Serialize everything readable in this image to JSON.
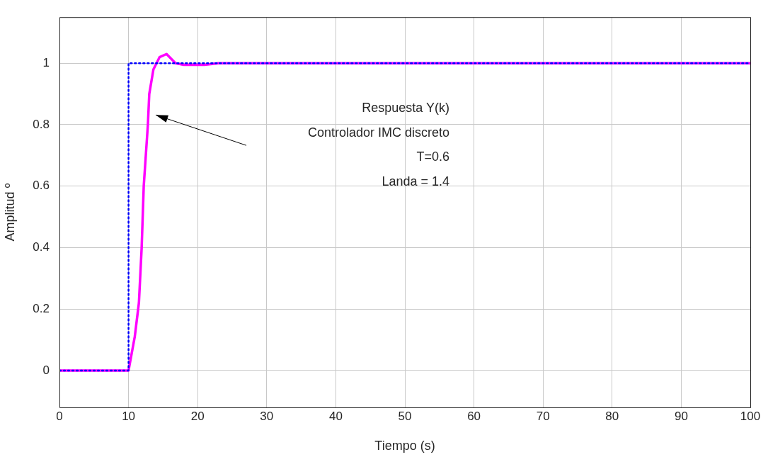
{
  "chart_data": {
    "type": "line",
    "xlabel": "Tiempo (s)",
    "ylabel": "Amplitud º",
    "xlim": [
      0,
      100
    ],
    "xticks": [
      0,
      10,
      20,
      30,
      40,
      50,
      60,
      70,
      80,
      90,
      100
    ],
    "ylim": [
      -0.12,
      1.15
    ],
    "yticks": [
      0,
      0.2,
      0.4,
      0.6,
      0.8,
      1
    ],
    "grid": true,
    "legend": false,
    "marker": "none",
    "series": [
      {
        "color": "#0000ff",
        "line_style": "dotted",
        "x": [
          0,
          10,
          10,
          100
        ],
        "values": [
          0,
          0,
          1,
          1
        ]
      },
      {
        "color": "#ff00ff",
        "line_style": "solid",
        "x": [
          0,
          10,
          10.9,
          11.5,
          11.9,
          12.2,
          12.8,
          13,
          13.6,
          14.5,
          15.5,
          16.8,
          18,
          21,
          23,
          100
        ],
        "values": [
          0,
          0,
          0.11,
          0.22,
          0.4,
          0.6,
          0.8,
          0.9,
          0.98,
          1.02,
          1.03,
          1.0,
          0.995,
          0.995,
          1,
          1
        ]
      }
    ],
    "annotations": [
      "Respuesta Y(k)\nControlador IMC discreto\nT=0.6\nLanda = 1.4"
    ]
  }
}
